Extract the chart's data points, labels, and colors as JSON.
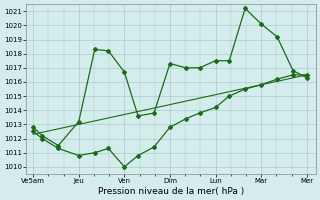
{
  "title": "",
  "xlabel": "Pression niveau de la mer( hPa )",
  "ylabel": "",
  "background_color": "#d4ecec",
  "grid_color": "#aacccc",
  "line_color": "#1a6b1a",
  "x_tick_labels": [
    "Ve5am",
    "Jeu",
    "Ven",
    "Dim",
    "Lun",
    "Mar",
    "Mer"
  ],
  "x_tick_positions": [
    0,
    1,
    2,
    3,
    4,
    5,
    6
  ],
  "ylim": [
    1009.5,
    1021.5
  ],
  "yticks": [
    1010,
    1011,
    1012,
    1013,
    1014,
    1015,
    1016,
    1017,
    1018,
    1019,
    1020,
    1021
  ],
  "line1_x": [
    0.0,
    0.2,
    0.55,
    1.0,
    1.35,
    1.65,
    2.0,
    2.3,
    2.65,
    3.0,
    3.35,
    3.65,
    4.0,
    4.3,
    4.65,
    5.0,
    5.35,
    5.7,
    6.0
  ],
  "line1_y": [
    1012.8,
    1012.2,
    1011.5,
    1013.2,
    1018.3,
    1018.2,
    1016.7,
    1013.6,
    1013.8,
    1017.3,
    1017.0,
    1017.0,
    1017.5,
    1017.5,
    1021.2,
    1020.1,
    1019.2,
    1016.8,
    1016.3
  ],
  "line2_x": [
    0.0,
    0.2,
    0.55,
    1.0,
    1.35,
    1.65,
    2.0,
    2.3,
    2.65,
    3.0,
    3.35,
    3.65,
    4.0,
    4.3,
    4.65,
    5.0,
    5.35,
    5.7,
    6.0
  ],
  "line2_y": [
    1012.5,
    1012.0,
    1011.3,
    1010.8,
    1011.0,
    1011.3,
    1010.0,
    1010.8,
    1011.4,
    1012.8,
    1013.4,
    1013.8,
    1014.2,
    1015.0,
    1015.5,
    1015.8,
    1016.2,
    1016.5,
    1016.5
  ],
  "line3_x": [
    0.0,
    6.0
  ],
  "line3_y": [
    1012.3,
    1016.5
  ]
}
